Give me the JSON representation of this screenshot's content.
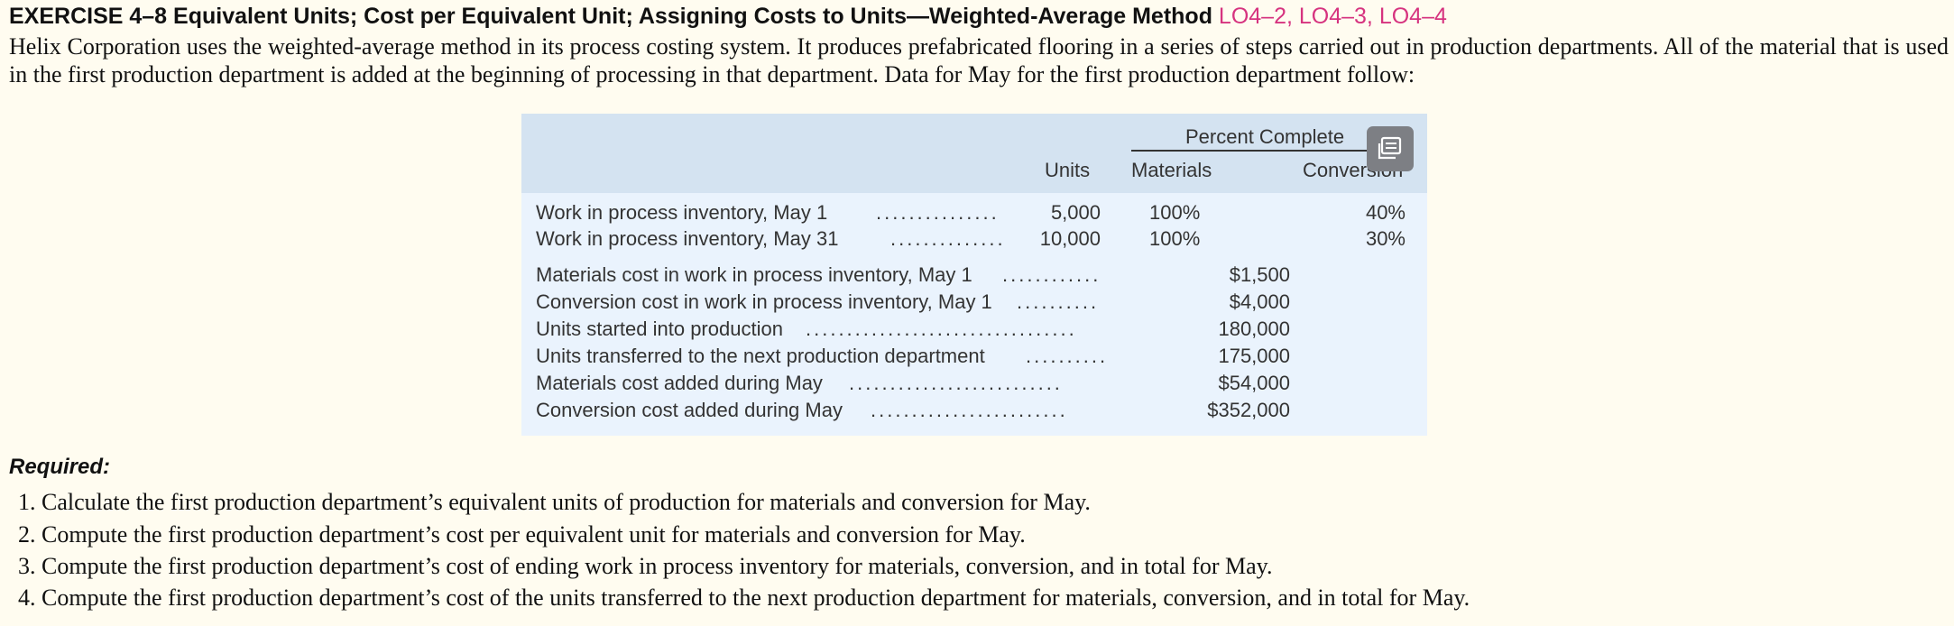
{
  "exercise": {
    "heading": "EXERCISE 4–8 Equivalent Units; Cost per Equivalent Unit; Assigning Costs to Units—Weighted-Average Method",
    "learning_objectives": "LO4–2, LO4–3, LO4–4",
    "intro": "Helix Corporation uses the weighted-average method in its process costing system. It produces prefabricated flooring in a series of steps carried out in production departments. All of the material that is used in the first production department is added at the beginning of processing in that department. Data for May for the first production department follow:"
  },
  "table": {
    "percent_complete_label": "Percent Complete",
    "col_units": "Units",
    "col_materials": "Materials",
    "col_conversion": "Conversion",
    "wip_rows": [
      {
        "label": "Work in process inventory, May 1",
        "dots": "...............",
        "units": "5,000",
        "materials": "100%",
        "conversion": "40%"
      },
      {
        "label": "Work in process inventory, May 31",
        "dots": "..............",
        "units": "10,000",
        "materials": "100%",
        "conversion": "30%"
      }
    ],
    "cost_rows": [
      {
        "label": "Materials cost in work in process inventory, May 1",
        "dots": "............",
        "value": "$1,500"
      },
      {
        "label": "Conversion cost in work in process inventory, May 1",
        "dots": "..........",
        "value": "$4,000"
      },
      {
        "label": "Units started into production",
        "dots": ".................................",
        "value": "180,000"
      },
      {
        "label": "Units transferred to the next production department",
        "dots": "..........",
        "value": "175,000"
      },
      {
        "label": "Materials cost added during May",
        "dots": "..........................",
        "value": "$54,000"
      },
      {
        "label": "Conversion cost added during May",
        "dots": "........................",
        "value": "$352,000"
      }
    ]
  },
  "overlay": {
    "icon": "copy-icon"
  },
  "required": {
    "label": "Required:",
    "items": [
      "1. Calculate the first production department’s equivalent units of production for materials and conversion for May.",
      "2. Compute the first production department’s cost per equivalent unit for materials and conversion for May.",
      "3. Compute the first production department’s cost of ending work in process inventory for materials, conversion, and in total for May.",
      "4. Compute the first production department’s cost of the units transferred to the next production department for materials, conversion, and in total for May."
    ]
  }
}
